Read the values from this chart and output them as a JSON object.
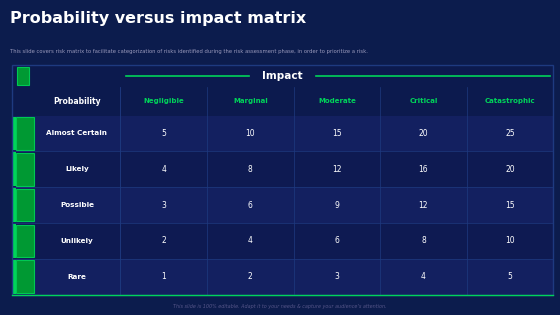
{
  "title": "Probability versus impact matrix",
  "subtitle": "This slide covers risk matrix to facilitate categorization of risks identified during the risk assessment phase, in order to prioritize a risk.",
  "footer": "This slide is 100% editable. Adapt it to your needs & capture your audience’s attention.",
  "impact_label": "Impact",
  "col_headers": [
    "Negligible",
    "Marginal",
    "Moderate",
    "Critical",
    "Catastrophic"
  ],
  "row_headers": [
    "Almost Certain",
    "Likely",
    "Possible",
    "Unlikely",
    "Rare"
  ],
  "values": [
    [
      5,
      10,
      15,
      20,
      25
    ],
    [
      4,
      8,
      12,
      16,
      20
    ],
    [
      3,
      6,
      9,
      12,
      15
    ],
    [
      2,
      4,
      6,
      8,
      10
    ],
    [
      1,
      2,
      3,
      4,
      5
    ]
  ],
  "bg_color": "#0c1c4d",
  "table_row_odd": "#132060",
  "table_row_even": "#0e1a52",
  "table_header_row": "#0c1a4e",
  "impact_header_bg": "#0c1a4e",
  "green_bright": "#00d45a",
  "green_icon_bg": "#009933",
  "green_border": "#00c853",
  "text_white": "#ffffff",
  "text_green": "#00d45a",
  "grid_line_color": "#1e3a80",
  "title_color": "#ffffff",
  "subtitle_color": "#9999bb",
  "footer_color": "#555588"
}
